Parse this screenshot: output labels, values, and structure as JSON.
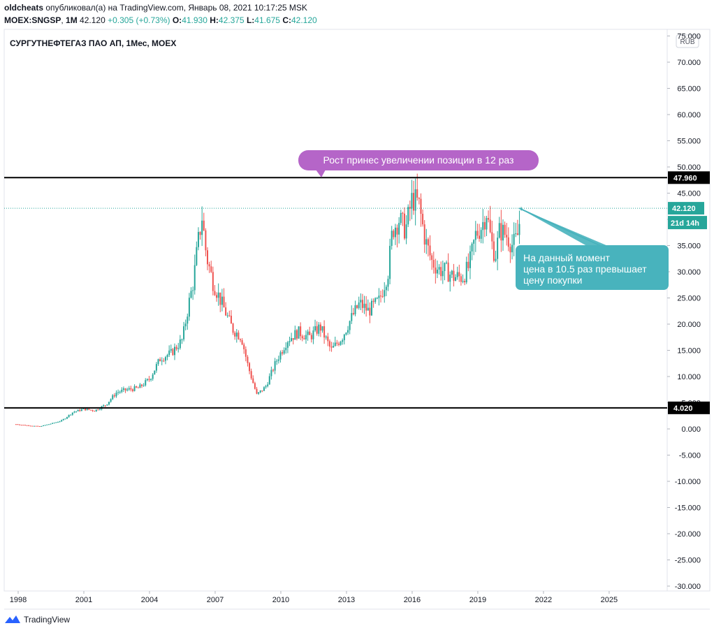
{
  "header": {
    "author": "oldcheats",
    "published_text": "опубликовал(а) на TradingView.com, Январь 08, 2021 10:17:25 MSK",
    "symbol": "MOEX:SNGSP",
    "interval": "1M",
    "last": "42.120",
    "change": "+0.305 (+0.73%)",
    "o_label": "O:",
    "o_value": "41.930",
    "h_label": "H:",
    "h_value": "42.375",
    "l_label": "L:",
    "l_value": "41.675",
    "c_label": "C:",
    "c_value": "42.120"
  },
  "branding": {
    "name": "TradingView",
    "icon": "tradingview-logo-icon"
  },
  "colors": {
    "up": "#26a69a",
    "down": "#ef5350",
    "callout_purple": "#b565c8",
    "callout_teal": "#48b3bd",
    "level_line": "#000000",
    "price_line": "#26a69a"
  },
  "chart_data": {
    "type": "candlestick",
    "title": "СУРГУТНЕФТЕГАЗ ПАО АП, 1Мес, MOEX",
    "currency": "RUB",
    "xlim": [
      1997.8,
      2027.8
    ],
    "ylim": [
      -30.5,
      75
    ],
    "x_ticks": [
      "1998",
      "2001",
      "2004",
      "2007",
      "2010",
      "2013",
      "2016",
      "2019",
      "2022",
      "2025"
    ],
    "y_ticks": [
      "-30.000",
      "-25.000",
      "-20.000",
      "-15.000",
      "-10.000",
      "-5.000",
      "0.000",
      "5.000",
      "10.000",
      "15.000",
      "20.000",
      "25.000",
      "30.000",
      "35.000",
      "40.000",
      "45.000",
      "50.000",
      "55.000",
      "60.000",
      "65.000",
      "70.000",
      "75.000"
    ],
    "levels": [
      {
        "price": 47.96,
        "label": "47.960"
      },
      {
        "price": 4.02,
        "label": "4.020"
      }
    ],
    "current_price": {
      "price": 42.12,
      "label": "42.120",
      "countdown": "21d 14h"
    },
    "closes_anchors": [
      [
        1997.9,
        0.9
      ],
      [
        1998.6,
        0.6
      ],
      [
        1999.0,
        0.5
      ],
      [
        1999.5,
        1.0
      ],
      [
        2000.0,
        1.6
      ],
      [
        2000.5,
        3.2
      ],
      [
        2001.0,
        3.8
      ],
      [
        2001.5,
        3.5
      ],
      [
        2002.0,
        4.6
      ],
      [
        2002.5,
        7.0
      ],
      [
        2003.0,
        7.5
      ],
      [
        2003.5,
        7.8
      ],
      [
        2004.0,
        9.5
      ],
      [
        2004.5,
        13.5
      ],
      [
        2005.0,
        14.5
      ],
      [
        2005.5,
        17.0
      ],
      [
        2005.8,
        24.0
      ],
      [
        2006.0,
        28.0
      ],
      [
        2006.2,
        35.0
      ],
      [
        2006.4,
        40.5
      ],
      [
        2006.6,
        33.0
      ],
      [
        2006.9,
        28.0
      ],
      [
        2007.3,
        24.0
      ],
      [
        2007.8,
        19.0
      ],
      [
        2008.2,
        17.5
      ],
      [
        2008.5,
        12.0
      ],
      [
        2008.9,
        6.5
      ],
      [
        2009.3,
        8.0
      ],
      [
        2009.8,
        13.0
      ],
      [
        2010.3,
        17.0
      ],
      [
        2010.8,
        18.5
      ],
      [
        2011.3,
        17.5
      ],
      [
        2011.8,
        19.5
      ],
      [
        2012.3,
        15.0
      ],
      [
        2012.8,
        17.5
      ],
      [
        2013.2,
        21.0
      ],
      [
        2013.6,
        24.0
      ],
      [
        2014.0,
        22.5
      ],
      [
        2014.5,
        24.5
      ],
      [
        2014.9,
        30.0
      ],
      [
        2015.1,
        38.0
      ],
      [
        2015.4,
        40.0
      ],
      [
        2015.7,
        38.0
      ],
      [
        2016.0,
        44.0
      ],
      [
        2016.3,
        43.0
      ],
      [
        2016.6,
        36.0
      ],
      [
        2016.9,
        32.0
      ],
      [
        2017.2,
        30.5
      ],
      [
        2017.6,
        30.0
      ],
      [
        2017.9,
        29.0
      ],
      [
        2018.3,
        29.0
      ],
      [
        2018.6,
        31.0
      ],
      [
        2018.9,
        37.0
      ],
      [
        2019.2,
        39.0
      ],
      [
        2019.4,
        41.5
      ],
      [
        2019.6,
        36.0
      ],
      [
        2019.8,
        33.0
      ],
      [
        2020.0,
        38.0
      ],
      [
        2020.3,
        37.0
      ],
      [
        2020.6,
        35.0
      ],
      [
        2020.8,
        36.5
      ],
      [
        2021.0,
        42.12
      ]
    ]
  },
  "annotations": {
    "growth_callout": "Рост принес увеличении позиции в 12 раз",
    "current_callout_lines": [
      "На данный момент",
      "цена в 10.5 раз превышает",
      "цену покупки"
    ]
  }
}
